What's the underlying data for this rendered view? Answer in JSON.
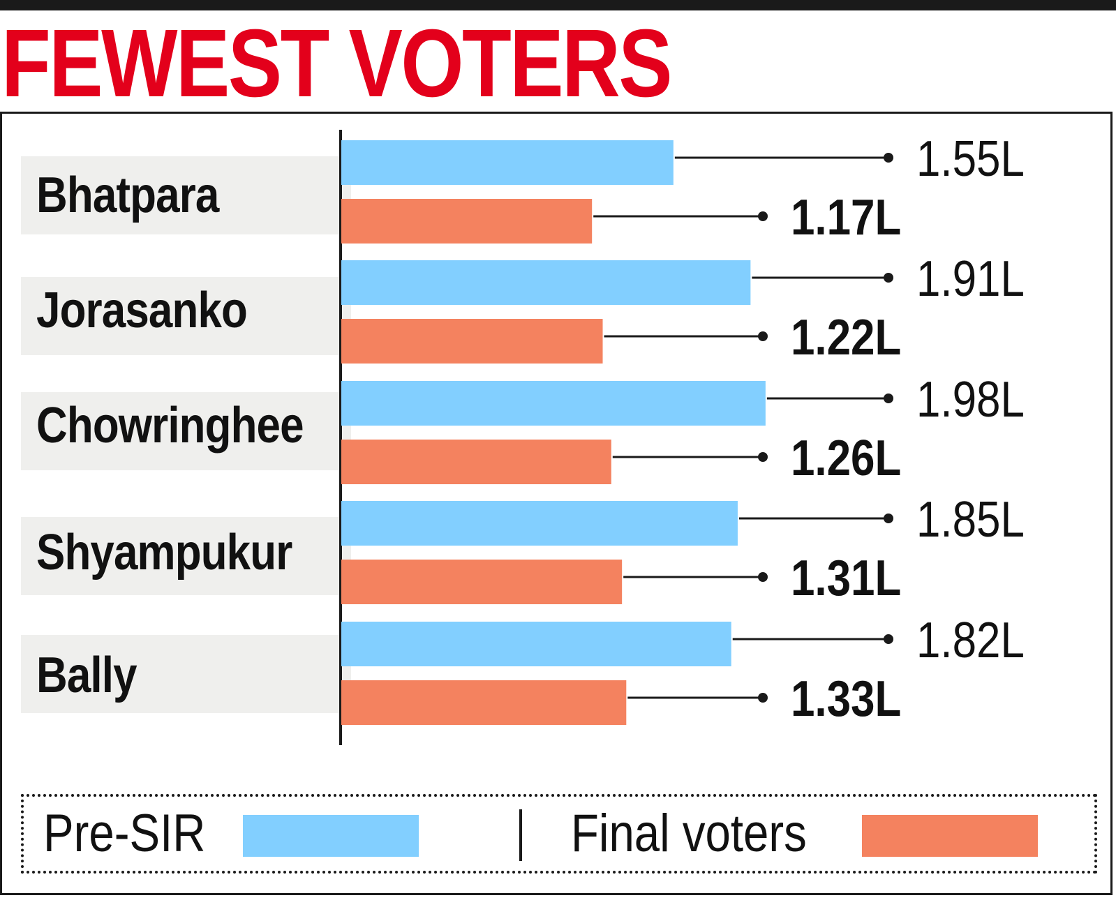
{
  "title": "FEWEST VOTERS",
  "colors": {
    "title": "#e3001b",
    "pre_sir": "#82cfff",
    "final_voters": "#f4825f"
  },
  "legend": {
    "pre_sir_label": "Pre-SIR",
    "final_label": "Final voters",
    "separator": "|"
  },
  "chart_data": {
    "type": "bar",
    "orientation": "horizontal",
    "title": "FEWEST VOTERS",
    "categories": [
      "Bhatpara",
      "Jorasanko",
      "Chowringhee",
      "Shyampukur",
      "Bally"
    ],
    "series": [
      {
        "name": "Pre-SIR",
        "color": "#82cfff",
        "values": [
          1.55,
          1.91,
          1.98,
          1.85,
          1.82
        ],
        "labels": [
          "1.55L",
          "1.91L",
          "1.98L",
          "1.85L",
          "1.82L"
        ]
      },
      {
        "name": "Final voters",
        "color": "#f4825f",
        "values": [
          1.17,
          1.22,
          1.26,
          1.31,
          1.33
        ],
        "labels": [
          "1.17L",
          "1.22L",
          "1.26L",
          "1.31L",
          "1.33L"
        ]
      }
    ],
    "unit": "L",
    "xlim": [
      0,
      2
    ],
    "grid": false,
    "legend_position": "bottom"
  }
}
